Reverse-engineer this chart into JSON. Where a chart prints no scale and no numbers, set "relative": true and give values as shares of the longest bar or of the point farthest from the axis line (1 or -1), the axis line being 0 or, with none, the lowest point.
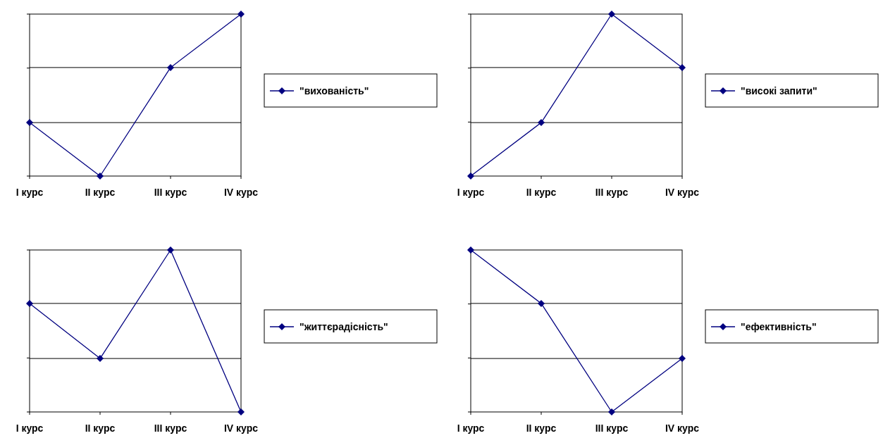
{
  "chart_data": [
    {
      "type": "line",
      "relative": true,
      "categories": [
        "I курс",
        "II курс",
        "III курс",
        "IV курс"
      ],
      "series": [
        {
          "name": "\"вихованість\"",
          "color": "#000080",
          "values": [
            0.33,
            0,
            0.67,
            1
          ]
        }
      ],
      "ref_lines": [
        {
          "axis": "y",
          "value": 0.33,
          "color": "#000000"
        },
        {
          "axis": "y",
          "value": 0.67,
          "color": "#000000"
        }
      ],
      "legend": "right",
      "marker": "diamond"
    },
    {
      "type": "line",
      "relative": true,
      "categories": [
        "I курс",
        "II курс",
        "III курс",
        "IV курс"
      ],
      "series": [
        {
          "name": "\"високі запити\"",
          "color": "#000080",
          "values": [
            0,
            0.33,
            1,
            0.67
          ]
        }
      ],
      "ref_lines": [
        {
          "axis": "y",
          "value": 0.33,
          "color": "#000000"
        },
        {
          "axis": "y",
          "value": 0.67,
          "color": "#000000"
        }
      ],
      "legend": "right",
      "marker": "diamond"
    },
    {
      "type": "line",
      "relative": true,
      "categories": [
        "I курс",
        "II курс",
        "III курс",
        "IV курс"
      ],
      "series": [
        {
          "name": "\"життєрадісність\"",
          "color": "#000080",
          "values": [
            0.67,
            0.33,
            1,
            0
          ]
        }
      ],
      "ref_lines": [
        {
          "axis": "y",
          "value": 0.33,
          "color": "#000000"
        },
        {
          "axis": "y",
          "value": 0.67,
          "color": "#000000"
        }
      ],
      "legend": "right",
      "marker": "diamond"
    },
    {
      "type": "line",
      "relative": true,
      "categories": [
        "I курс",
        "II курс",
        "III курс",
        "IV курс"
      ],
      "series": [
        {
          "name": "\"ефективність\"",
          "color": "#000080",
          "values": [
            1,
            0.67,
            0,
            0.33
          ]
        }
      ],
      "ref_lines": [
        {
          "axis": "y",
          "value": 0.33,
          "color": "#000000"
        },
        {
          "axis": "y",
          "value": 0.67,
          "color": "#000000"
        }
      ],
      "legend": "right",
      "marker": "diamond"
    }
  ]
}
